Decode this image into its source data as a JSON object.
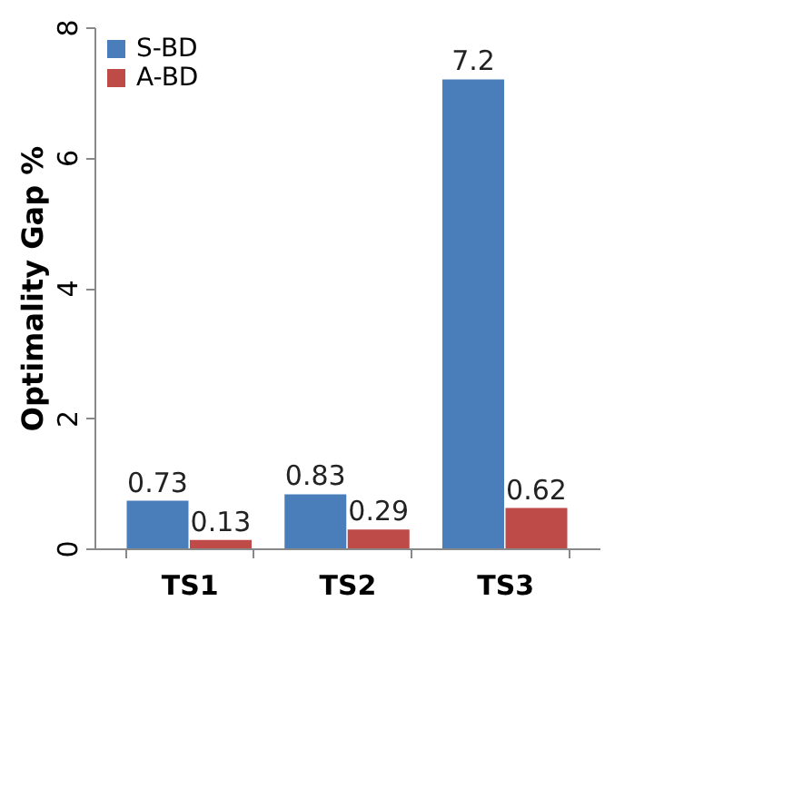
{
  "chart_data": {
    "type": "bar",
    "ylabel": "Optimality Gap %",
    "categories": [
      "TS1",
      "TS2",
      "TS3"
    ],
    "series": [
      {
        "name": "S-BD",
        "color": "#4a7ebb",
        "values": [
          0.73,
          0.83,
          7.2
        ]
      },
      {
        "name": "A-BD",
        "color": "#be4b48",
        "values": [
          0.13,
          0.29,
          0.62
        ]
      }
    ],
    "ylim": [
      0,
      8
    ],
    "yticks": [
      0,
      2,
      4,
      6,
      8
    ],
    "grid": false,
    "legend": "top left",
    "data_labels": true
  }
}
